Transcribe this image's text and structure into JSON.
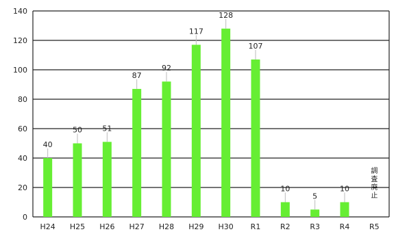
{
  "chart_data": {
    "type": "bar",
    "categories": [
      "H24",
      "H25",
      "H26",
      "H27",
      "H28",
      "H29",
      "H30",
      "R1",
      "R2",
      "R3",
      "R4",
      "R5"
    ],
    "values": [
      40,
      50,
      51,
      87,
      92,
      117,
      128,
      107,
      10,
      5,
      10,
      null
    ],
    "data_labels": [
      "40",
      "50",
      "51",
      "87",
      "92",
      "117",
      "128",
      "107",
      "10",
      "5",
      "10",
      ""
    ],
    "ylim": [
      0,
      140
    ],
    "yticks": [
      0,
      20,
      40,
      60,
      80,
      100,
      120,
      140
    ],
    "grid": true,
    "legend": "none",
    "title": "",
    "xlabel": "",
    "ylabel": "",
    "bar_color": "#66ee33",
    "note": {
      "category": "R5",
      "text": "調査廃止"
    }
  }
}
